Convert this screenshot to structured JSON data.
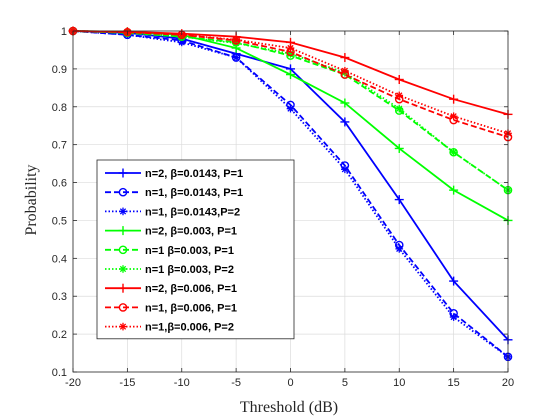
{
  "chart_data": {
    "type": "line",
    "xlabel": "Threshold (dB)",
    "ylabel": "Probability",
    "xlim": [
      -20,
      20
    ],
    "ylim": [
      0.1,
      1
    ],
    "xticks": [
      -20,
      -15,
      -10,
      -5,
      0,
      5,
      10,
      15,
      20
    ],
    "yticks": [
      0.1,
      0.2,
      0.3,
      0.4,
      0.5,
      0.6,
      0.7,
      0.8,
      0.9,
      1
    ],
    "ytick_labels": [
      "0.1",
      "0.2",
      "0.3",
      "0.4",
      "0.5",
      "0.6",
      "0.7",
      "0.8",
      "0.9",
      "1"
    ],
    "grid": true,
    "legend_position": "left-middle",
    "x": [
      -20,
      -15,
      -10,
      -5,
      0,
      5,
      10,
      15,
      20
    ],
    "series": [
      {
        "name": "n=2, β=0.0143, P=1",
        "color": "#0000ff",
        "dash": "solid",
        "marker": "plus",
        "values": [
          1.0,
          0.995,
          0.98,
          0.94,
          0.9,
          0.76,
          0.555,
          0.34,
          0.185
        ]
      },
      {
        "name": "n=1, β=0.0143, P=1",
        "color": "#0000ff",
        "dash": "dashed",
        "marker": "circle",
        "values": [
          1.0,
          0.99,
          0.975,
          0.93,
          0.805,
          0.645,
          0.435,
          0.255,
          0.14
        ]
      },
      {
        "name": "n=1, β=0.0143,P=2",
        "color": "#0000ff",
        "dash": "dotted",
        "marker": "star",
        "values": [
          1.0,
          0.99,
          0.97,
          0.93,
          0.795,
          0.635,
          0.425,
          0.245,
          0.14
        ]
      },
      {
        "name": "n=2, β=0.003, P=1",
        "color": "#00ff00",
        "dash": "solid",
        "marker": "plus",
        "values": [
          1.0,
          0.998,
          0.99,
          0.955,
          0.885,
          0.81,
          0.69,
          0.58,
          0.5
        ]
      },
      {
        "name": "n=1 β=0.003, P=1",
        "color": "#00ff00",
        "dash": "dashed",
        "marker": "circle",
        "values": [
          1.0,
          0.995,
          0.985,
          0.97,
          0.935,
          0.885,
          0.79,
          0.68,
          0.58
        ]
      },
      {
        "name": "n=1 β=0.003, P=2",
        "color": "#00ff00",
        "dash": "dotted",
        "marker": "star",
        "values": [
          1.0,
          0.995,
          0.985,
          0.968,
          0.94,
          0.89,
          0.795,
          0.68,
          0.58
        ]
      },
      {
        "name": "n=2, β=0.006, P=1",
        "color": "#ff0000",
        "dash": "solid",
        "marker": "plus",
        "values": [
          1.0,
          0.998,
          0.993,
          0.985,
          0.97,
          0.93,
          0.872,
          0.82,
          0.78
        ]
      },
      {
        "name": "n=1, β=0.006, P=1",
        "color": "#ff0000",
        "dash": "dashed",
        "marker": "circle",
        "values": [
          1.0,
          0.997,
          0.99,
          0.975,
          0.945,
          0.885,
          0.82,
          0.765,
          0.72
        ]
      },
      {
        "name": "n=1,β=0.006, P=2",
        "color": "#ff0000",
        "dash": "dotted",
        "marker": "star",
        "values": [
          1.0,
          0.997,
          0.99,
          0.977,
          0.955,
          0.895,
          0.83,
          0.775,
          0.73
        ]
      }
    ]
  }
}
